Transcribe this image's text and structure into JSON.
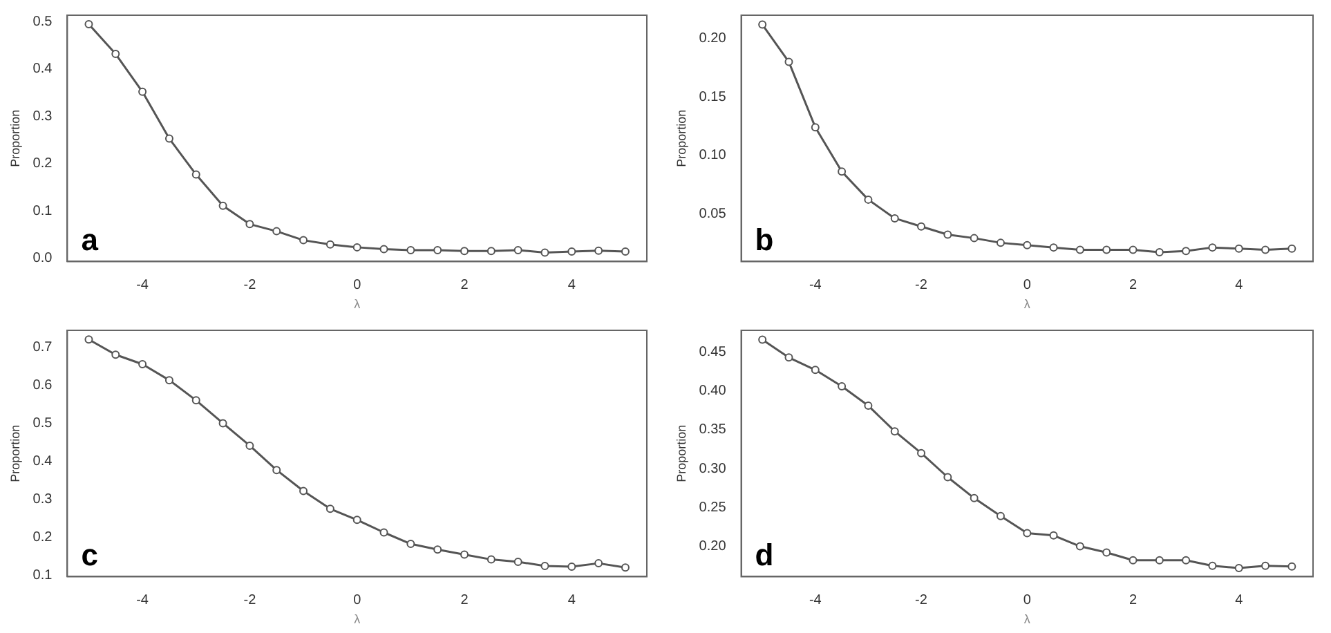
{
  "chart_data": [
    {
      "type": "line",
      "xlabel": "λ",
      "ylabel": "Proportion",
      "annotations": [
        "a"
      ],
      "marker": "circle",
      "grid": false,
      "x": [
        -5,
        -4.5,
        -4,
        -3.5,
        -3,
        -2.5,
        -2,
        -1.5,
        -1,
        -0.5,
        0,
        0.5,
        1,
        1.5,
        2,
        2.5,
        3,
        3.5,
        4,
        4.5,
        5
      ],
      "series": [
        {
          "color": "#555555",
          "values": [
            0.495,
            0.432,
            0.352,
            0.253,
            0.177,
            0.111,
            0.072,
            0.057,
            0.038,
            0.029,
            0.023,
            0.019,
            0.017,
            0.017,
            0.015,
            0.015,
            0.017,
            0.012,
            0.014,
            0.016,
            0.014
          ]
        }
      ],
      "xlim": [
        -5.4,
        5.4
      ],
      "xticks": [
        -4,
        -2,
        0,
        2,
        4
      ],
      "ylim": [
        -0.007,
        0.514
      ],
      "yticks": [
        {
          "value": 0,
          "label": "0.0"
        },
        0.1,
        0.2,
        0.3,
        0.4,
        0.5
      ]
    },
    {
      "type": "line",
      "xlabel": "λ",
      "ylabel": "Proportion",
      "annotations": [
        "b"
      ],
      "marker": "circle",
      "grid": false,
      "x": [
        -5,
        -4.5,
        -4,
        -3.5,
        -3,
        -2.5,
        -2,
        -1.5,
        -1,
        -0.5,
        0,
        0.5,
        1,
        1.5,
        2,
        2.5,
        3,
        3.5,
        4,
        4.5,
        5
      ],
      "series": [
        {
          "color": "#555555",
          "values": [
            0.212,
            0.18,
            0.124,
            0.086,
            0.062,
            0.046,
            0.039,
            0.032,
            0.029,
            0.025,
            0.023,
            0.021,
            0.019,
            0.019,
            0.019,
            0.017,
            0.018,
            0.021,
            0.02,
            0.019,
            0.02
          ]
        }
      ],
      "xlim": [
        -5.4,
        5.4
      ],
      "xticks": [
        -4,
        -2,
        0,
        2,
        4
      ],
      "ylim": [
        0.009,
        0.22
      ],
      "yticks": [
        0.05,
        {
          "value": 0.1,
          "label": "0.10"
        },
        0.15,
        {
          "value": 0.2,
          "label": "0.20"
        }
      ]
    },
    {
      "type": "line",
      "xlabel": "λ",
      "ylabel": "Proportion",
      "annotations": [
        "c"
      ],
      "marker": "circle",
      "grid": false,
      "x": [
        -5,
        -4.5,
        -4,
        -3.5,
        -3,
        -2.5,
        -2,
        -1.5,
        -1,
        -0.5,
        0,
        0.5,
        1,
        1.5,
        2,
        2.5,
        3,
        3.5,
        4,
        4.5,
        5
      ],
      "series": [
        {
          "color": "#555555",
          "values": [
            0.72,
            0.68,
            0.655,
            0.613,
            0.56,
            0.5,
            0.441,
            0.377,
            0.322,
            0.275,
            0.246,
            0.213,
            0.183,
            0.168,
            0.155,
            0.142,
            0.136,
            0.125,
            0.123,
            0.132,
            0.121
          ]
        }
      ],
      "xlim": [
        -5.4,
        5.4
      ],
      "xticks": [
        -4,
        -2,
        0,
        2,
        4
      ],
      "ylim": [
        0.097,
        0.744
      ],
      "yticks": [
        0.1,
        0.2,
        0.3,
        0.4,
        0.5,
        0.6,
        0.7
      ]
    },
    {
      "type": "line",
      "xlabel": "λ",
      "ylabel": "Proportion",
      "annotations": [
        "d"
      ],
      "marker": "circle",
      "grid": false,
      "x": [
        -5,
        -4.5,
        -4,
        -3.5,
        -3,
        -2.5,
        -2,
        -1.5,
        -1,
        -0.5,
        0,
        0.5,
        1,
        1.5,
        2,
        2.5,
        3,
        3.5,
        4,
        4.5,
        5
      ],
      "series": [
        {
          "color": "#555555",
          "values": [
            0.466,
            0.443,
            0.427,
            0.406,
            0.381,
            0.348,
            0.32,
            0.289,
            0.262,
            0.239,
            0.217,
            0.214,
            0.2,
            0.192,
            0.182,
            0.182,
            0.182,
            0.175,
            0.172,
            0.175,
            0.174
          ]
        }
      ],
      "xlim": [
        -5.4,
        5.4
      ],
      "xticks": [
        -4,
        -2,
        0,
        2,
        4
      ],
      "ylim": [
        0.161,
        0.478
      ],
      "yticks": [
        {
          "value": 0.2,
          "label": "0.20"
        },
        0.25,
        {
          "value": 0.3,
          "label": "0.30"
        },
        0.35,
        {
          "value": 0.4,
          "label": "0.40"
        },
        0.45
      ]
    }
  ]
}
